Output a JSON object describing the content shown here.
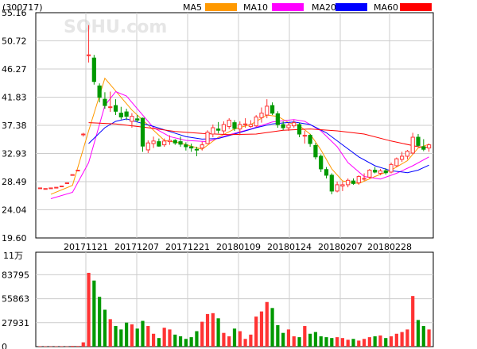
{
  "header": {
    "stock_code": "(300717)",
    "watermark": "SOHU.com"
  },
  "legend": [
    {
      "name": "MA5",
      "color": "#ff9900"
    },
    {
      "name": "MA10",
      "color": "#ff00ff"
    },
    {
      "name": "MA20",
      "color": "#0000ff"
    },
    {
      "name": "MA60",
      "color": "#ff0000"
    }
  ],
  "colors": {
    "up": "#ff3333",
    "down": "#009900",
    "grid": "#cccccc",
    "axis": "#000000"
  },
  "chart_data": [
    {
      "type": "candlestick",
      "title": "",
      "ylim": [
        19.6,
        55.16
      ],
      "y_ticks": [
        "55.16",
        "50.72",
        "46.27",
        "41.83",
        "37.38",
        "32.93",
        "28.49",
        "24.04",
        "19.60"
      ],
      "x_ticks": [
        "20171121",
        "20171207",
        "20171221",
        "20180109",
        "20180124",
        "20180207",
        "20180228"
      ],
      "grid": true,
      "candles": [
        [
          27.5,
          27.5,
          27.5,
          27.5
        ],
        [
          27.4,
          27.4,
          27.4,
          27.4
        ],
        [
          27.5,
          27.5,
          27.5,
          27.5
        ],
        [
          27.6,
          27.6,
          27.6,
          27.6
        ],
        [
          27.8,
          27.8,
          27.8,
          27.8
        ],
        [
          28.3,
          28.3,
          28.3,
          28.3
        ],
        [
          29.6,
          29.6,
          29.6,
          29.6
        ],
        [
          30.3,
          30.3,
          30.3,
          30.3
        ],
        [
          36.0,
          36.2,
          35.6,
          36.0
        ],
        [
          48.5,
          53.2,
          47.3,
          48.5
        ],
        [
          48.0,
          48.5,
          43.8,
          44.3
        ],
        [
          43.6,
          44.0,
          41.0,
          41.8
        ],
        [
          41.5,
          42.6,
          40.0,
          40.5
        ],
        [
          40.2,
          42.7,
          39.5,
          40.3
        ],
        [
          40.5,
          41.5,
          39.0,
          39.6
        ],
        [
          39.3,
          40.3,
          38.3,
          38.7
        ],
        [
          39.5,
          40.0,
          38.2,
          38.8
        ],
        [
          38.0,
          39.3,
          37.0,
          38.8
        ],
        [
          38.4,
          39.0,
          37.9,
          38.2
        ],
        [
          38.5,
          38.6,
          33.2,
          34.1
        ],
        [
          33.5,
          35.0,
          33.0,
          34.6
        ],
        [
          34.5,
          35.6,
          33.8,
          34.9
        ],
        [
          34.8,
          35.3,
          34.0,
          34.1
        ],
        [
          34.3,
          35.3,
          34.0,
          34.9
        ],
        [
          34.8,
          35.8,
          34.3,
          35.0
        ],
        [
          35.0,
          35.2,
          34.3,
          34.6
        ],
        [
          34.8,
          35.6,
          34.0,
          34.4
        ],
        [
          34.3,
          34.7,
          33.4,
          34.0
        ],
        [
          34.0,
          34.5,
          33.2,
          33.8
        ],
        [
          33.6,
          34.0,
          32.5,
          33.5
        ],
        [
          33.8,
          34.8,
          33.4,
          34.3
        ],
        [
          34.5,
          36.6,
          34.4,
          36.3
        ],
        [
          36.0,
          37.5,
          35.5,
          37.0
        ],
        [
          36.8,
          37.9,
          36.1,
          36.6
        ],
        [
          36.5,
          38.0,
          36.0,
          37.5
        ],
        [
          37.2,
          38.5,
          36.8,
          38.2
        ],
        [
          37.8,
          38.2,
          36.5,
          36.9
        ],
        [
          36.8,
          38.0,
          35.8,
          37.5
        ],
        [
          37.5,
          38.5,
          37.0,
          37.6
        ],
        [
          37.2,
          38.2,
          37.0,
          37.5
        ],
        [
          37.3,
          39.0,
          37.1,
          38.7
        ],
        [
          38.6,
          40.2,
          37.8,
          39.3
        ],
        [
          39.0,
          41.5,
          38.5,
          40.4
        ],
        [
          40.5,
          41.0,
          39.0,
          39.3
        ],
        [
          39.2,
          39.6,
          37.0,
          37.5
        ],
        [
          37.5,
          38.0,
          36.6,
          37.0
        ],
        [
          37.0,
          37.8,
          36.5,
          37.4
        ],
        [
          37.3,
          38.2,
          37.0,
          37.8
        ],
        [
          37.5,
          37.8,
          35.5,
          36.0
        ],
        [
          35.8,
          36.5,
          34.5,
          35.8
        ],
        [
          35.8,
          36.0,
          34.0,
          34.5
        ],
        [
          34.2,
          34.6,
          32.0,
          32.4
        ],
        [
          32.5,
          32.8,
          30.0,
          30.5
        ],
        [
          30.4,
          30.8,
          29.0,
          29.5
        ],
        [
          29.5,
          29.8,
          26.5,
          27.0
        ],
        [
          27.0,
          28.5,
          26.8,
          28.0
        ],
        [
          27.8,
          28.5,
          27.0,
          28.0
        ],
        [
          28.0,
          29.0,
          27.6,
          28.7
        ],
        [
          28.6,
          29.0,
          28.0,
          28.2
        ],
        [
          28.3,
          29.5,
          28.0,
          29.3
        ],
        [
          29.0,
          29.8,
          28.6,
          29.0
        ],
        [
          29.2,
          30.5,
          29.0,
          30.3
        ],
        [
          30.3,
          30.8,
          29.8,
          30.0
        ],
        [
          29.8,
          30.5,
          29.5,
          30.2
        ],
        [
          30.2,
          30.6,
          29.6,
          29.9
        ],
        [
          30.0,
          31.5,
          29.8,
          31.2
        ],
        [
          31.0,
          32.3,
          30.8,
          32.1
        ],
        [
          32.0,
          33.2,
          31.6,
          32.5
        ],
        [
          32.5,
          33.5,
          32.0,
          33.3
        ],
        [
          33.0,
          36.2,
          32.8,
          35.5
        ],
        [
          35.5,
          36.0,
          34.0,
          34.2
        ],
        [
          34.0,
          35.2,
          33.3,
          33.6
        ],
        [
          33.8,
          34.5,
          33.2,
          34.3
        ]
      ],
      "ma": {
        "MA5": [
          [
            2,
            26.5
          ],
          [
            6,
            27.9
          ],
          [
            9,
            36.5
          ],
          [
            12,
            44.8
          ],
          [
            14,
            42.8
          ],
          [
            17,
            39.8
          ],
          [
            20,
            37.4
          ],
          [
            23,
            35.0
          ],
          [
            26,
            34.6
          ],
          [
            30,
            33.6
          ],
          [
            33,
            35.5
          ],
          [
            36,
            36.8
          ],
          [
            39,
            37.5
          ],
          [
            42,
            39.0
          ],
          [
            44,
            38.8
          ],
          [
            46,
            37.8
          ],
          [
            48,
            37.3
          ],
          [
            50,
            36.0
          ],
          [
            52,
            33.5
          ],
          [
            54,
            30.5
          ],
          [
            56,
            28.6
          ],
          [
            59,
            28.2
          ],
          [
            62,
            29.3
          ],
          [
            65,
            30.3
          ],
          [
            68,
            31.8
          ],
          [
            70,
            33.8
          ],
          [
            72,
            34.4
          ]
        ],
        "MA10": [
          [
            2,
            25.8
          ],
          [
            6,
            26.8
          ],
          [
            9,
            31.5
          ],
          [
            12,
            40.5
          ],
          [
            14,
            42.7
          ],
          [
            16,
            42.0
          ],
          [
            19,
            39.0
          ],
          [
            21,
            37.0
          ],
          [
            24,
            35.6
          ],
          [
            27,
            35.0
          ],
          [
            31,
            34.8
          ],
          [
            35,
            35.9
          ],
          [
            39,
            36.8
          ],
          [
            43,
            37.9
          ],
          [
            47,
            38.3
          ],
          [
            49,
            38.0
          ],
          [
            52,
            36.5
          ],
          [
            55,
            34.0
          ],
          [
            57,
            31.5
          ],
          [
            60,
            29.3
          ],
          [
            63,
            28.9
          ],
          [
            66,
            29.8
          ],
          [
            69,
            31.0
          ],
          [
            72,
            32.4
          ]
        ],
        "MA20": [
          [
            9,
            34.5
          ],
          [
            12,
            37.0
          ],
          [
            14,
            38.0
          ],
          [
            16,
            38.4
          ],
          [
            18,
            37.9
          ],
          [
            21,
            37.2
          ],
          [
            24,
            36.4
          ],
          [
            27,
            35.6
          ],
          [
            30,
            35.2
          ],
          [
            33,
            35.3
          ],
          [
            36,
            36.0
          ],
          [
            40,
            37.0
          ],
          [
            43,
            37.6
          ],
          [
            47,
            37.9
          ],
          [
            50,
            37.5
          ],
          [
            53,
            36.2
          ],
          [
            56,
            34.3
          ],
          [
            59,
            32.4
          ],
          [
            62,
            31.0
          ],
          [
            65,
            30.2
          ],
          [
            68,
            29.9
          ],
          [
            70,
            30.3
          ],
          [
            72,
            31.1
          ]
        ],
        "MA60": [
          [
            9,
            37.8
          ],
          [
            14,
            37.6
          ],
          [
            20,
            37.0
          ],
          [
            25,
            36.4
          ],
          [
            30,
            36.1
          ],
          [
            35,
            35.9
          ],
          [
            40,
            36.0
          ],
          [
            45,
            36.6
          ],
          [
            50,
            36.8
          ],
          [
            55,
            36.5
          ],
          [
            60,
            36.0
          ],
          [
            65,
            34.9
          ],
          [
            70,
            34.0
          ],
          [
            72,
            33.9
          ]
        ]
      }
    },
    {
      "type": "bar",
      "title": "",
      "unit_label": "11万",
      "ylim": [
        0,
        110000
      ],
      "y_ticks": [
        "83795",
        "55863",
        "27931",
        "0"
      ],
      "values": [
        500,
        400,
        300,
        400,
        500,
        300,
        800,
        700,
        5000,
        86000,
        77000,
        58000,
        43000,
        32000,
        24000,
        20000,
        28000,
        26000,
        21000,
        30000,
        24000,
        15000,
        10000,
        22000,
        20000,
        14000,
        12000,
        9000,
        11000,
        18000,
        29000,
        38000,
        39000,
        33000,
        16000,
        12000,
        21000,
        18000,
        9000,
        14000,
        35000,
        41000,
        52000,
        45000,
        25000,
        16000,
        20000,
        12000,
        11000,
        24000,
        15000,
        17000,
        12000,
        11000,
        10000,
        11000,
        10000,
        8000,
        9000,
        7000,
        9000,
        11000,
        12000,
        13000,
        10000,
        12000,
        15000,
        17000,
        20000,
        59000,
        31000,
        24000,
        20000
      ]
    }
  ]
}
